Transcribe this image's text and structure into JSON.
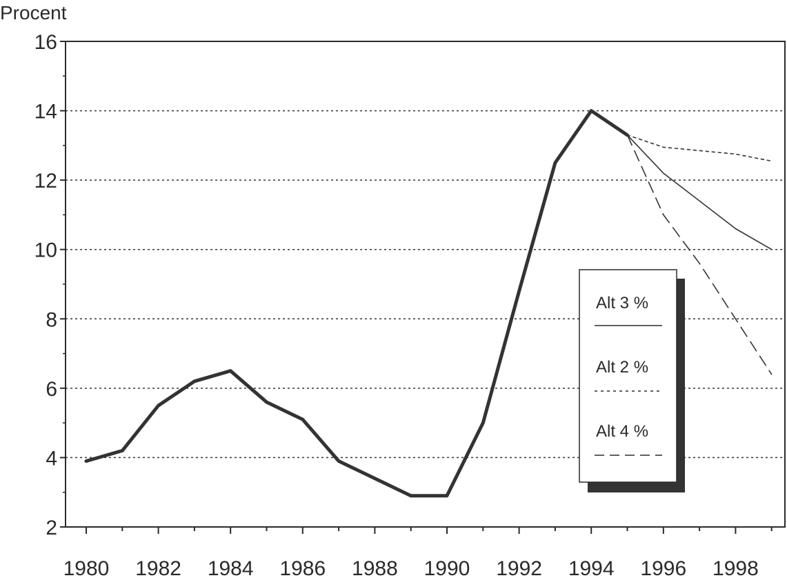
{
  "chart_data": {
    "type": "line",
    "title": "",
    "xlabel": "",
    "ylabel": "Procent",
    "xlim": [
      1980,
      1999
    ],
    "ylim": [
      2,
      16
    ],
    "x_ticks": [
      "1980",
      "1982",
      "1984",
      "1986",
      "1988",
      "1990",
      "1992",
      "1994",
      "1996",
      "1998"
    ],
    "y_ticks": [
      "2",
      "4",
      "6",
      "8",
      "10",
      "12",
      "14",
      "16"
    ],
    "grid": "horizontal dotted",
    "legend_position": "lower-right",
    "series": [
      {
        "name": "",
        "style": "thick-solid",
        "x": [
          1980,
          1981,
          1982,
          1983,
          1984,
          1985,
          1986,
          1987,
          1988,
          1989,
          1990,
          1991,
          1992,
          1993,
          1994,
          1995
        ],
        "values": [
          3.9,
          4.2,
          5.5,
          6.2,
          6.5,
          5.6,
          5.1,
          3.9,
          3.4,
          2.9,
          2.9,
          5.0,
          8.8,
          12.5,
          14.0,
          13.3
        ]
      },
      {
        "name": "Alt 3 %",
        "style": "solid",
        "x": [
          1995,
          1996,
          1997,
          1998,
          1999
        ],
        "values": [
          13.3,
          12.2,
          11.4,
          10.6,
          10.0
        ]
      },
      {
        "name": "Alt 2 %",
        "style": "dotted",
        "x": [
          1995,
          1996,
          1997,
          1998,
          1999
        ],
        "values": [
          13.3,
          12.95,
          12.85,
          12.75,
          12.55
        ]
      },
      {
        "name": "Alt 4 %",
        "style": "dashed",
        "x": [
          1995,
          1996,
          1997,
          1998,
          1999
        ],
        "values": [
          13.3,
          11.0,
          9.6,
          8.0,
          6.4
        ]
      }
    ]
  }
}
